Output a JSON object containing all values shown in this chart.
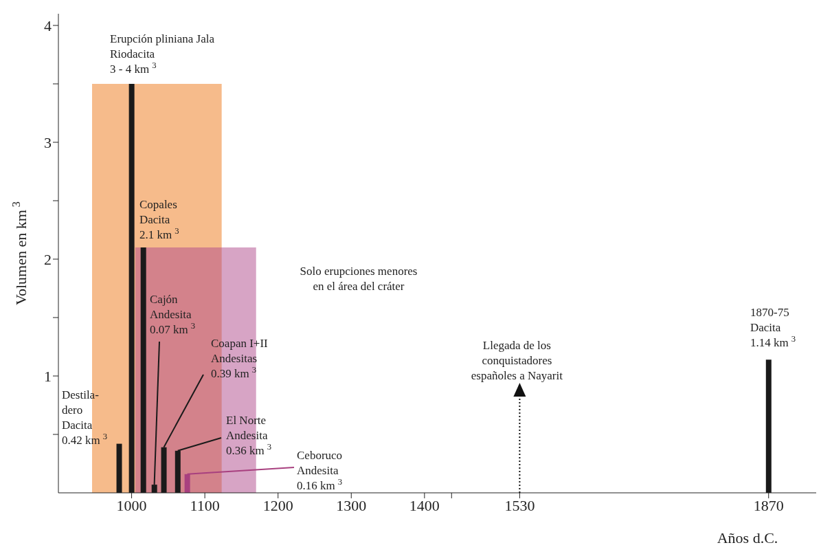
{
  "chart_data": {
    "type": "bar",
    "xlabel": "Años d.C.",
    "ylabel": "Volumen en km$^{3}$",
    "x": [
      983,
      1000,
      1016,
      1031,
      1044,
      1063,
      1076,
      1870
    ],
    "values": [
      0.42,
      3.5,
      2.1,
      0.07,
      0.39,
      0.36,
      0.16,
      1.14
    ],
    "colors": [
      "#1a1a1a",
      "#1a1a1a",
      "#1a1a1a",
      "#1a1a1a",
      "#1a1a1a",
      "#1a1a1a",
      "#a8407f",
      "#1a1a1a"
    ],
    "xlim": [
      900,
      1935
    ],
    "xticks": [
      1000,
      1100,
      1200,
      1300,
      1400,
      {
        "value": 1437,
        "label": null
      },
      1530,
      1870
    ],
    "ylim": [
      0,
      4.1
    ],
    "yticks": [
      {
        "value": 0.5,
        "label": null
      },
      1,
      {
        "value": 1.5,
        "label": null
      },
      2,
      {
        "value": 2.5,
        "label": null
      },
      3,
      {
        "value": 3.5,
        "label": null
      },
      4
    ],
    "bands": [
      {
        "axis": "x",
        "from": 946,
        "to": 1123,
        "color": "#ee7717"
      },
      {
        "axis": "x",
        "from": 1005,
        "to": 1170,
        "color": "#b04a8c"
      }
    ],
    "annotations": [
      {
        "text": "Destila-\ndero\nDacita\n0.42 km$^{3}$",
        "x": 983,
        "y": 0.42
      },
      {
        "text": "Erupción pliniana Jala\nRiodacita\n3 - 4 km$^{3}$",
        "x": 1000,
        "y": 3.5
      },
      {
        "text": "Copales\nDacita\n2.1 km$^{3}$",
        "x": 1016,
        "y": 2.1
      },
      {
        "text": "Cajón\nAndesita\n0.07 km$^{3}$",
        "x": 1031,
        "y": 0.07
      },
      {
        "text": "Coapan I+II\nAndesitas\n0.39 km$^{3}$",
        "x": 1044,
        "y": 0.39
      },
      {
        "text": "El Norte\nAndesita\n0.36 km$^{3}$",
        "x": 1063,
        "y": 0.36
      },
      {
        "text": "Ceboruco\nAndesita\n0.16 km$^{3}$",
        "x": 1076,
        "y": 0.16
      },
      {
        "text": "1870-75\nDacita\n1.14 km$^{3}$",
        "x": 1870,
        "y": 1.14
      },
      "Solo erupciones menores\nen el área del cráter"
    ],
    "ref_lines": [
      {
        "axis": "x",
        "value": 1530,
        "label": "Llegada de los\nconquistadores\nespañoles a Nayarit",
        "line_style": "dotted"
      }
    ],
    "grid": false,
    "legend": false
  }
}
